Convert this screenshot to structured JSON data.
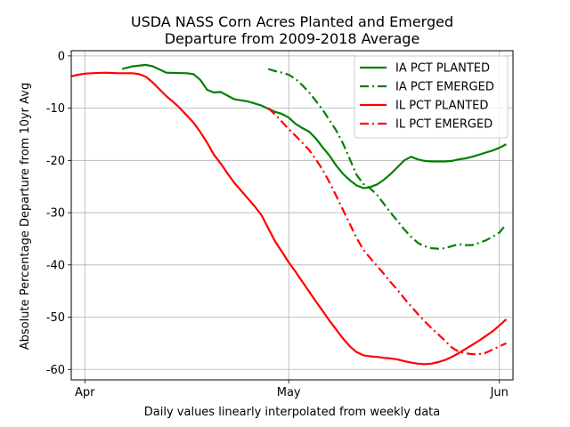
{
  "chart_data": {
    "type": "line",
    "title": [
      "USDA NASS Corn Acres Planted and Emerged",
      "Departure from 2009-2018 Average"
    ],
    "xlabel": "Daily values linearly interpolated from weekly data",
    "ylabel": "Absolute Percentage Departure from 10yr Avg",
    "x_unit": "day-of-year (2019)",
    "xlim": [
      89,
      154
    ],
    "ylim": [
      -62,
      1
    ],
    "x_ticks": [
      {
        "x": 91,
        "label": "Apr"
      },
      {
        "x": 121,
        "label": "May"
      },
      {
        "x": 152,
        "label": "Jun"
      }
    ],
    "y_ticks": [
      0,
      -10,
      -20,
      -30,
      -40,
      -50,
      -60
    ],
    "grid": true,
    "legend_position": "top-right",
    "colors": {
      "IA": "#008000",
      "IL": "#ff0000"
    },
    "series": [
      {
        "name": "IA PCT PLANTED",
        "color": "#008000",
        "style": "solid",
        "points": [
          [
            96.5,
            -2.5
          ],
          [
            98,
            -2.0
          ],
          [
            100,
            -1.7
          ],
          [
            101,
            -2.0
          ],
          [
            102,
            -2.6
          ],
          [
            103,
            -3.2
          ],
          [
            106,
            -3.3
          ],
          [
            107,
            -3.5
          ],
          [
            108,
            -4.6
          ],
          [
            109,
            -6.5
          ],
          [
            110,
            -7.0
          ],
          [
            111,
            -6.9
          ],
          [
            112,
            -7.6
          ],
          [
            113,
            -8.3
          ],
          [
            114,
            -8.5
          ],
          [
            115,
            -8.7
          ],
          [
            116,
            -9.1
          ],
          [
            117,
            -9.5
          ],
          [
            118,
            -10.1
          ],
          [
            119,
            -10.7
          ],
          [
            120,
            -11.1
          ],
          [
            121,
            -11.8
          ],
          [
            122,
            -13.0
          ],
          [
            123,
            -13.8
          ],
          [
            124,
            -14.5
          ],
          [
            125,
            -15.8
          ],
          [
            126,
            -17.5
          ],
          [
            127,
            -19.1
          ],
          [
            128,
            -21.0
          ],
          [
            129,
            -22.6
          ],
          [
            130,
            -23.8
          ],
          [
            131,
            -24.8
          ],
          [
            132,
            -25.3
          ],
          [
            133,
            -25.1
          ],
          [
            134,
            -24.6
          ],
          [
            135,
            -23.7
          ],
          [
            136,
            -22.6
          ],
          [
            137,
            -21.3
          ],
          [
            138,
            -20.0
          ],
          [
            139,
            -19.3
          ],
          [
            140,
            -19.8
          ],
          [
            141,
            -20.1
          ],
          [
            142,
            -20.2
          ],
          [
            143,
            -20.2
          ],
          [
            144,
            -20.2
          ],
          [
            145,
            -20.1
          ],
          [
            146,
            -19.8
          ],
          [
            147,
            -19.6
          ],
          [
            148,
            -19.3
          ],
          [
            149,
            -18.9
          ],
          [
            150,
            -18.5
          ],
          [
            151,
            -18.1
          ],
          [
            152,
            -17.6
          ],
          [
            153,
            -16.9
          ]
        ]
      },
      {
        "name": "IA PCT EMERGED",
        "color": "#008000",
        "style": "dashdot",
        "points": [
          [
            118,
            -2.5
          ],
          [
            119,
            -2.9
          ],
          [
            120,
            -3.2
          ],
          [
            121,
            -3.6
          ],
          [
            122,
            -4.4
          ],
          [
            123,
            -5.6
          ],
          [
            124,
            -7.0
          ],
          [
            125,
            -8.6
          ],
          [
            126,
            -10.3
          ],
          [
            127,
            -12.3
          ],
          [
            128,
            -14.3
          ],
          [
            129,
            -16.8
          ],
          [
            130,
            -19.8
          ],
          [
            131,
            -22.8
          ],
          [
            132,
            -24.5
          ],
          [
            133,
            -25.4
          ],
          [
            134,
            -26.6
          ],
          [
            135,
            -28.3
          ],
          [
            136,
            -30.0
          ],
          [
            137,
            -31.6
          ],
          [
            138,
            -33.2
          ],
          [
            139,
            -34.6
          ],
          [
            140,
            -35.8
          ],
          [
            141,
            -36.4
          ],
          [
            142,
            -36.8
          ],
          [
            143,
            -36.9
          ],
          [
            144,
            -36.8
          ],
          [
            145,
            -36.4
          ],
          [
            146,
            -36.0
          ],
          [
            147,
            -36.2
          ],
          [
            148,
            -36.2
          ],
          [
            149,
            -35.8
          ],
          [
            150,
            -35.3
          ],
          [
            151,
            -34.6
          ],
          [
            152,
            -33.8
          ],
          [
            153,
            -32.2
          ]
        ]
      },
      {
        "name": "IL PCT PLANTED",
        "color": "#ff0000",
        "style": "solid",
        "points": [
          [
            89,
            -3.9
          ],
          [
            90,
            -3.6
          ],
          [
            91,
            -3.4
          ],
          [
            92,
            -3.3
          ],
          [
            94,
            -3.2
          ],
          [
            96,
            -3.3
          ],
          [
            98,
            -3.3
          ],
          [
            99,
            -3.5
          ],
          [
            100,
            -4.0
          ],
          [
            101,
            -5.1
          ],
          [
            102,
            -6.4
          ],
          [
            103,
            -7.7
          ],
          [
            104,
            -8.8
          ],
          [
            105,
            -10.0
          ],
          [
            106,
            -11.4
          ],
          [
            107,
            -12.8
          ],
          [
            108,
            -14.6
          ],
          [
            109,
            -16.6
          ],
          [
            110,
            -18.9
          ],
          [
            111,
            -20.6
          ],
          [
            112,
            -22.5
          ],
          [
            113,
            -24.3
          ],
          [
            114,
            -25.8
          ],
          [
            115,
            -27.3
          ],
          [
            116,
            -28.8
          ],
          [
            117,
            -30.5
          ],
          [
            118,
            -33.0
          ],
          [
            119,
            -35.5
          ],
          [
            120,
            -37.5
          ],
          [
            121,
            -39.5
          ],
          [
            122,
            -41.3
          ],
          [
            123,
            -43.2
          ],
          [
            124,
            -45.1
          ],
          [
            125,
            -47.0
          ],
          [
            126,
            -48.8
          ],
          [
            127,
            -50.7
          ],
          [
            128,
            -52.4
          ],
          [
            129,
            -54.1
          ],
          [
            130,
            -55.6
          ],
          [
            131,
            -56.7
          ],
          [
            132,
            -57.3
          ],
          [
            133,
            -57.5
          ],
          [
            134,
            -57.6
          ],
          [
            135,
            -57.8
          ],
          [
            136,
            -57.9
          ],
          [
            137,
            -58.1
          ],
          [
            138,
            -58.4
          ],
          [
            139,
            -58.7
          ],
          [
            140,
            -58.9
          ],
          [
            141,
            -59.0
          ],
          [
            142,
            -58.9
          ],
          [
            143,
            -58.6
          ],
          [
            144,
            -58.2
          ],
          [
            145,
            -57.6
          ],
          [
            146,
            -56.9
          ],
          [
            147,
            -56.1
          ],
          [
            148,
            -55.3
          ],
          [
            149,
            -54.5
          ],
          [
            150,
            -53.6
          ],
          [
            151,
            -52.7
          ],
          [
            152,
            -51.6
          ],
          [
            153,
            -50.4
          ]
        ]
      },
      {
        "name": "IL PCT EMERGED",
        "color": "#ff0000",
        "style": "dashdot",
        "points": [
          [
            118,
            -10.0
          ],
          [
            119,
            -11.2
          ],
          [
            120,
            -12.6
          ],
          [
            121,
            -14.0
          ],
          [
            122,
            -15.3
          ],
          [
            123,
            -16.6
          ],
          [
            124,
            -18.0
          ],
          [
            125,
            -19.8
          ],
          [
            126,
            -21.8
          ],
          [
            127,
            -24.2
          ],
          [
            128,
            -26.8
          ],
          [
            129,
            -29.5
          ],
          [
            130,
            -32.2
          ],
          [
            131,
            -34.9
          ],
          [
            132,
            -37.1
          ],
          [
            133,
            -38.7
          ],
          [
            134,
            -40.2
          ],
          [
            135,
            -41.7
          ],
          [
            136,
            -43.3
          ],
          [
            137,
            -44.8
          ],
          [
            138,
            -46.4
          ],
          [
            139,
            -47.9
          ],
          [
            140,
            -49.4
          ],
          [
            141,
            -50.8
          ],
          [
            142,
            -52.1
          ],
          [
            143,
            -53.3
          ],
          [
            144,
            -54.5
          ],
          [
            145,
            -55.8
          ],
          [
            146,
            -56.6
          ],
          [
            147,
            -56.9
          ],
          [
            148,
            -57.1
          ],
          [
            149,
            -57.1
          ],
          [
            150,
            -56.8
          ],
          [
            151,
            -56.2
          ],
          [
            152,
            -55.6
          ],
          [
            153,
            -55.0
          ]
        ]
      }
    ]
  }
}
